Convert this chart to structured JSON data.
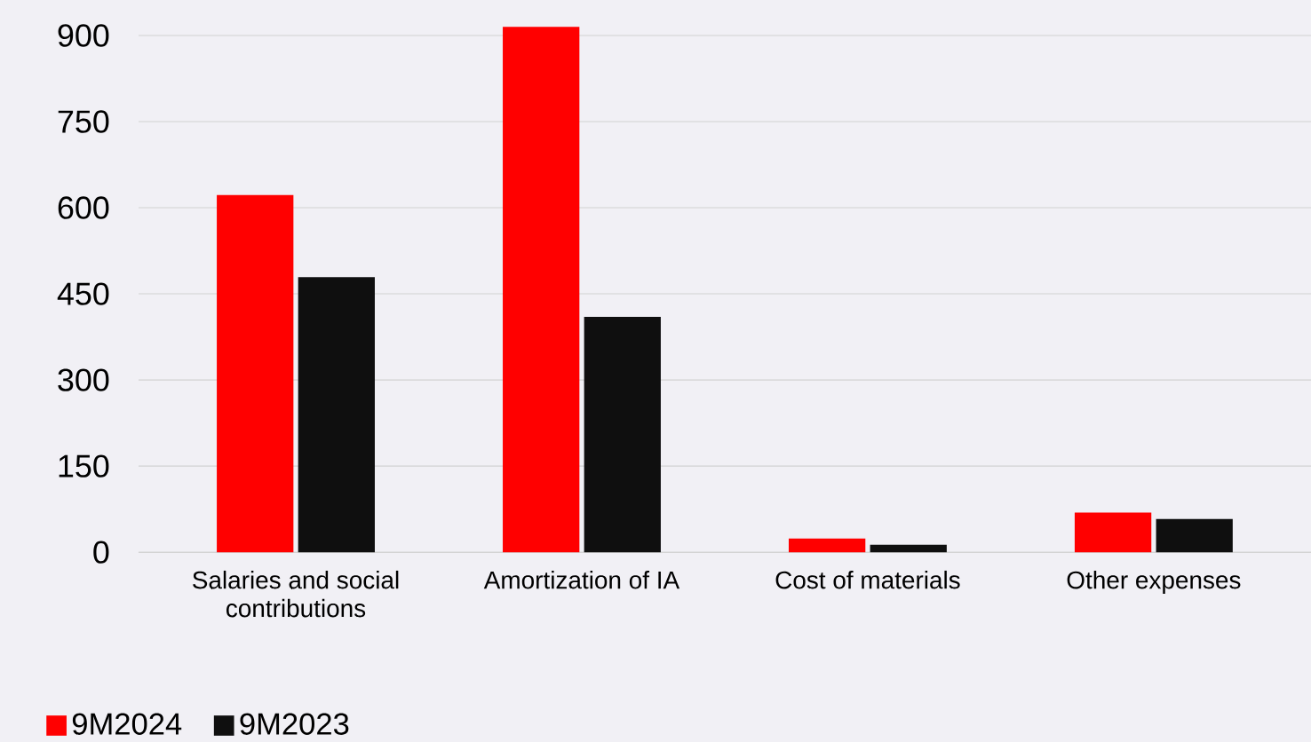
{
  "chart_data": {
    "type": "bar",
    "categories": [
      "Salaries and social contributions",
      "Amortization of IA",
      "Cost of materials",
      "Other expenses"
    ],
    "series": [
      {
        "name": "9M2024",
        "color": "#ff0000",
        "values": [
          622,
          915,
          24,
          69
        ]
      },
      {
        "name": "9M2023",
        "color": "#0f0f0f",
        "values": [
          479,
          410,
          13,
          58
        ]
      }
    ],
    "ylim": [
      0,
      915
    ],
    "yticks": [
      0,
      150,
      300,
      450,
      600,
      750,
      900
    ],
    "grid": "y",
    "legend": "bottom left"
  }
}
